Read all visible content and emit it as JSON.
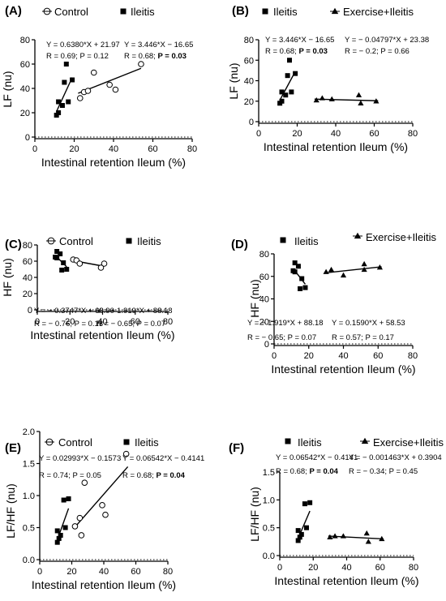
{
  "chart_data": [
    {
      "panel": "(A)",
      "type": "scatter",
      "xlabel": "Intestinal retention Ileum (%)",
      "ylabel": "LF (nu)",
      "xlim": [
        0,
        80
      ],
      "ylim": [
        0,
        80
      ],
      "xticks": [
        0,
        20,
        40,
        60,
        80
      ],
      "yticks": [
        0,
        20,
        40,
        60,
        80
      ],
      "series": [
        {
          "name": "Control",
          "marker": "open-circle",
          "points": [
            [
              23,
              32
            ],
            [
              25,
              37
            ],
            [
              27,
              38
            ],
            [
              30,
              53
            ],
            [
              38,
              43
            ],
            [
              41,
              39
            ],
            [
              54,
              60
            ]
          ],
          "fit": [
            [
              22,
              36
            ],
            [
              54,
              56.5
            ]
          ],
          "stats": [
            "Y = 0.6380*X + 21.97",
            "R = 0.69; P = 0.12"
          ]
        },
        {
          "name": "Ileitis",
          "marker": "filled-square",
          "points": [
            [
              11,
              18
            ],
            [
              12,
              20
            ],
            [
              12,
              29
            ],
            [
              14,
              26
            ],
            [
              15,
              45
            ],
            [
              16,
              60
            ],
            [
              17,
              29
            ],
            [
              19,
              47
            ]
          ],
          "fit": [
            [
              11,
              21
            ],
            [
              19,
              49
            ]
          ],
          "stats": [
            "Y = 3.446*X − 16.65",
            "R = 0.68; ",
            "P = 0.03"
          ]
        }
      ]
    },
    {
      "panel": "(B)",
      "type": "scatter",
      "xlabel": "Intestinal retention Ileum (%)",
      "ylabel": "LF (nu)",
      "xlim": [
        0,
        80
      ],
      "ylim": [
        0,
        80
      ],
      "xticks": [
        0,
        20,
        40,
        60,
        80
      ],
      "yticks": [
        0,
        20,
        40,
        60,
        80
      ],
      "series": [
        {
          "name": "Ileitis",
          "marker": "filled-square",
          "points": [
            [
              11,
              18
            ],
            [
              12,
              20
            ],
            [
              12,
              29
            ],
            [
              14,
              26
            ],
            [
              15,
              45
            ],
            [
              16,
              60
            ],
            [
              17,
              29
            ],
            [
              19,
              47
            ]
          ],
          "fit": [
            [
              11,
              21
            ],
            [
              19,
              49
            ]
          ],
          "stats": [
            "Y = 3.446*X − 16.65",
            "R = 0.68; ",
            "P = 0.03"
          ]
        },
        {
          "name": "Exercise+Ileitis",
          "marker": "filled-triangle",
          "points": [
            [
              30,
              21
            ],
            [
              33,
              23
            ],
            [
              38,
              22
            ],
            [
              52,
              26
            ],
            [
              53,
              18
            ],
            [
              61,
              20
            ]
          ],
          "fit": [
            [
              29,
              22
            ],
            [
              62,
              20.4
            ]
          ],
          "stats": [
            "Y = − 0.04797*X + 23.38",
            "R = − 0.2; P = 0.66"
          ]
        }
      ]
    },
    {
      "panel": "(C)",
      "type": "scatter",
      "xlabel": "Intestinal retention Ileum (%)",
      "ylabel": "HF (nu)",
      "xlim": [
        0,
        80
      ],
      "ylim": [
        0,
        80
      ],
      "xticks": [
        0,
        20,
        40,
        60,
        80
      ],
      "yticks": [
        0,
        20,
        40,
        60,
        80
      ],
      "series": [
        {
          "name": "Control",
          "marker": "open-circle",
          "points": [
            [
              22,
              62
            ],
            [
              24,
              61
            ],
            [
              26,
              57
            ],
            [
              39,
              52
            ],
            [
              41,
              57
            ]
          ],
          "fit": [
            [
              21,
              61
            ],
            [
              40,
              54
            ]
          ],
          "stats": [
            "Y = − 0.3747*X + 68.90",
            "R = − 0.76; P = 0.13"
          ]
        },
        {
          "name": "Ileitis",
          "marker": "filled-square",
          "points": [
            [
              11,
              65
            ],
            [
              12,
              64
            ],
            [
              12,
              72
            ],
            [
              14,
              69
            ],
            [
              15,
              49
            ],
            [
              16,
              58
            ],
            [
              18,
              50
            ]
          ],
          "fit": [
            [
              11,
              67
            ],
            [
              18,
              53
            ]
          ],
          "stats": [
            "Y = − 1.919*X + 88.18",
            "R = − 0.65; P = 0.07"
          ]
        }
      ]
    },
    {
      "panel": "(D)",
      "type": "scatter",
      "xlabel": "Intestinal retention Ileum (%)",
      "ylabel": "HF (nu)",
      "xlim": [
        0,
        80
      ],
      "ylim": [
        0,
        80
      ],
      "xticks": [
        0,
        20,
        40,
        60,
        80
      ],
      "yticks": [
        0,
        20,
        40,
        60,
        80
      ],
      "series": [
        {
          "name": "Ileitis",
          "marker": "filled-square",
          "points": [
            [
              11,
              65
            ],
            [
              12,
              64
            ],
            [
              12,
              72
            ],
            [
              14,
              69
            ],
            [
              15,
              49
            ],
            [
              16,
              58
            ],
            [
              18,
              50
            ]
          ],
          "fit": [
            [
              11,
              67
            ],
            [
              18,
              53
            ]
          ],
          "stats": [
            "Y = − 1.919*X + 88.18",
            "R = − 0.65; P = 0.07"
          ]
        },
        {
          "name": "Exercise+Ileitis",
          "marker": "filled-triangle",
          "points": [
            [
              30,
              64
            ],
            [
              33,
              66
            ],
            [
              40,
              61
            ],
            [
              52,
              71
            ],
            [
              52,
              66
            ],
            [
              61,
              68
            ]
          ],
          "fit": [
            [
              29,
              63
            ],
            [
              62,
              68.5
            ]
          ],
          "stats": [
            "Y = 0.1590*X + 58.53",
            "R = 0.57; P = 0.17"
          ]
        }
      ]
    },
    {
      "panel": "(E)",
      "type": "scatter",
      "xlabel": "Intestinal retention Ileum (%)",
      "ylabel": "LF/HF (nu)",
      "xlim": [
        0,
        80
      ],
      "ylim": [
        0,
        2.0
      ],
      "xticks": [
        0,
        20,
        40,
        60,
        80
      ],
      "yticks": [
        0.0,
        0.5,
        1.0,
        1.5,
        2.0
      ],
      "series": [
        {
          "name": "Control",
          "marker": "open-circle",
          "points": [
            [
              22,
              0.52
            ],
            [
              25,
              0.65
            ],
            [
              26,
              0.38
            ],
            [
              28,
              1.2
            ],
            [
              39,
              0.85
            ],
            [
              41,
              0.7
            ],
            [
              54,
              1.65
            ]
          ],
          "fit": [
            [
              21,
              0.48
            ],
            [
              55,
              1.45
            ]
          ],
          "stats": [
            "Y = 0.02993*X − 0.1573",
            "R = 0.74; P = 0.05"
          ]
        },
        {
          "name": "Ileitis",
          "marker": "filled-square",
          "points": [
            [
              11,
              0.27
            ],
            [
              11,
              0.45
            ],
            [
              12,
              0.33
            ],
            [
              13,
              0.38
            ],
            [
              15,
              0.93
            ],
            [
              16,
              0.5
            ],
            [
              18,
              0.95
            ]
          ],
          "fit": [
            [
              11,
              0.31
            ],
            [
              18,
              0.8
            ]
          ],
          "stats": [
            "Y = 0.06542*X − 0.4141",
            "R = 0.68; ",
            "P = 0.04"
          ]
        }
      ]
    },
    {
      "panel": "(F)",
      "type": "scatter",
      "xlabel": "Intestinal retention Ileum (%)",
      "ylabel": "LF/HF (nu)",
      "xlim": [
        0,
        80
      ],
      "ylim": [
        0,
        1.5
      ],
      "xticks": [
        0,
        20,
        40,
        60,
        80
      ],
      "yticks": [
        0.0,
        0.5,
        1.0,
        1.5
      ],
      "series": [
        {
          "name": "Ileitis",
          "marker": "filled-square",
          "points": [
            [
              11,
              0.27
            ],
            [
              11,
              0.45
            ],
            [
              12,
              0.33
            ],
            [
              13,
              0.38
            ],
            [
              15,
              0.93
            ],
            [
              16,
              0.5
            ],
            [
              18,
              0.95
            ]
          ],
          "fit": [
            [
              11,
              0.31
            ],
            [
              18,
              0.8
            ]
          ],
          "stats": [
            "Y = 0.06542*X − 0.4141",
            "R = 0.68; ",
            "P = 0.04"
          ]
        },
        {
          "name": "Exercise+Ileitis",
          "marker": "filled-triangle",
          "points": [
            [
              30,
              0.33
            ],
            [
              33,
              0.35
            ],
            [
              38,
              0.35
            ],
            [
              52,
              0.4
            ],
            [
              53,
              0.25
            ],
            [
              61,
              0.3
            ]
          ],
          "fit": [
            [
              29,
              0.35
            ],
            [
              62,
              0.3
            ]
          ],
          "stats": [
            "Y = − 0.001463*X + 0.3904",
            "R = − 0.34; P = 0.45"
          ]
        }
      ]
    }
  ]
}
